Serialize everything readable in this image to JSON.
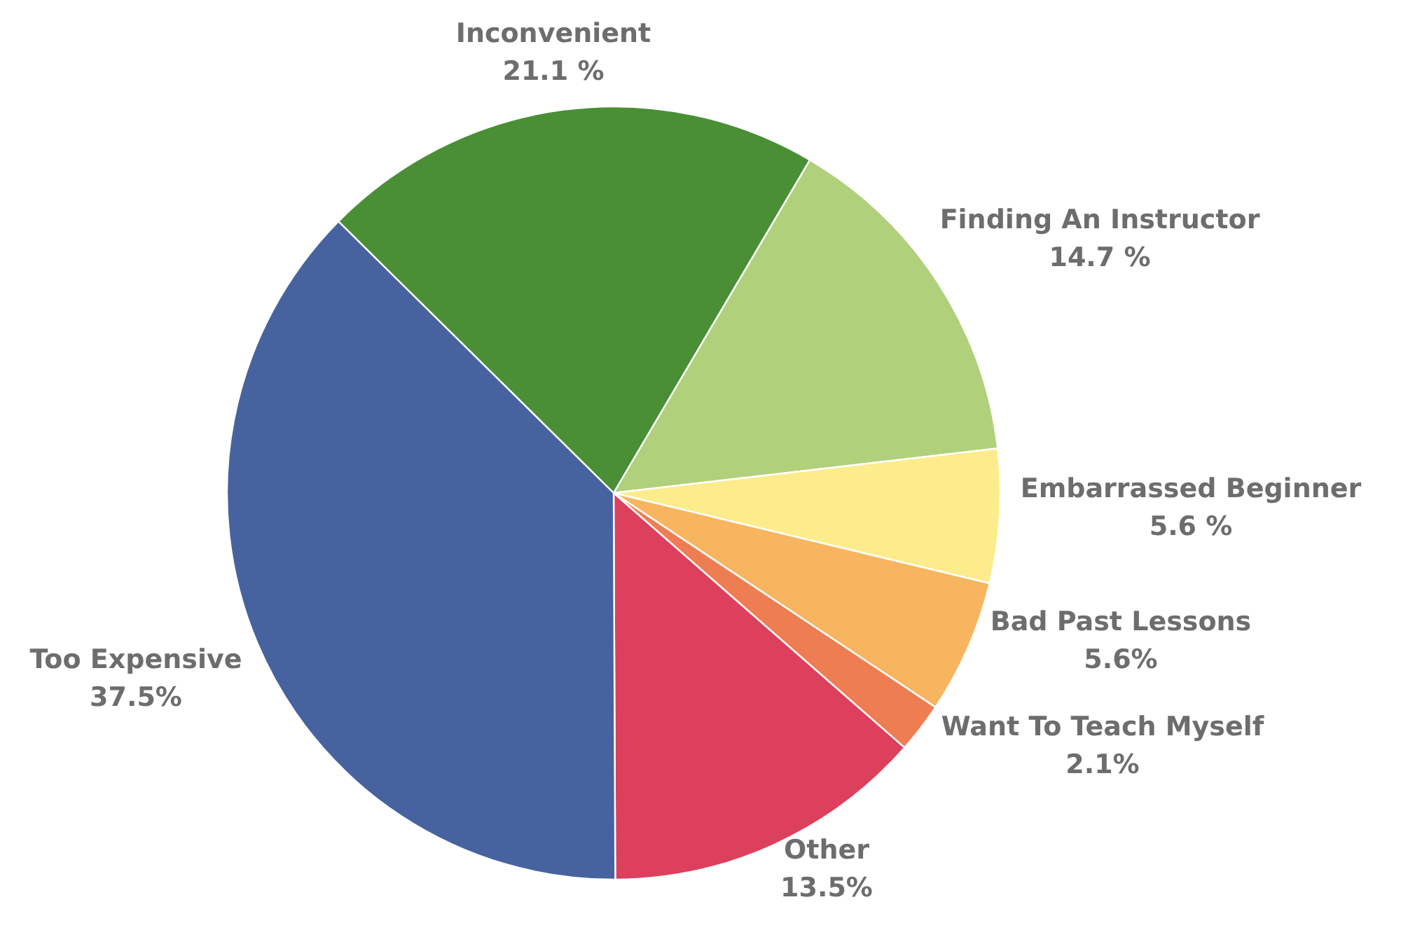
{
  "chart_data": {
    "type": "pie",
    "categories": [
      "Inconvenient",
      "Finding An Instructor",
      "Embarrassed Beginner",
      "Bad Past Lessons",
      "Want To Teach Myself",
      "Other",
      "Too Expensive"
    ],
    "values": [
      21.1,
      14.7,
      5.6,
      5.6,
      2.1,
      13.5,
      37.5
    ],
    "value_labels": [
      "21.1 %",
      "14.7 %",
      "5.6 %",
      "5.6%",
      "2.1%",
      "13.5%",
      "37.5%"
    ],
    "colors": [
      "#4a8f35",
      "#b1d07c",
      "#fdec8c",
      "#f8b560",
      "#ef7d52",
      "#dd405c",
      "#47639f"
    ]
  }
}
